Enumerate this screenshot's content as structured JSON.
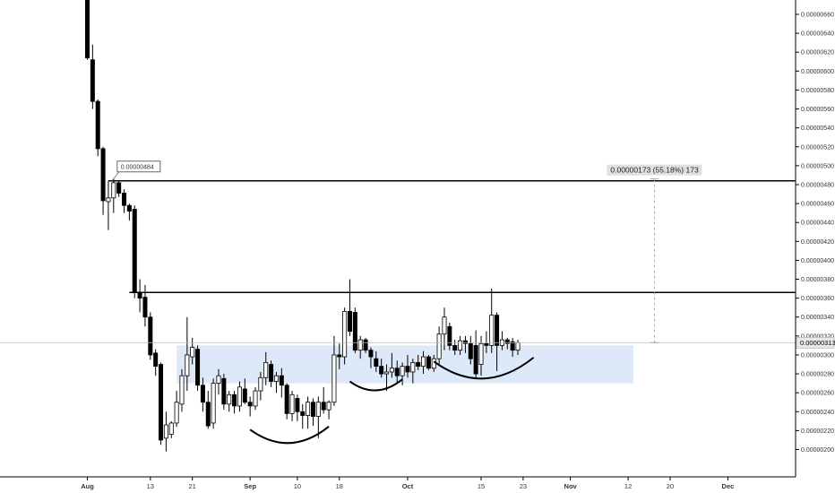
{
  "chart_data": {
    "type": "candlestick",
    "title": "",
    "xlabel": "",
    "ylabel": "",
    "ylim": [
      1.9e-06,
      6.7e-06
    ],
    "grid": false,
    "y_ticks": [
      "0.00000200",
      "0.00000220",
      "0.00000240",
      "0.00000260",
      "0.00000280",
      "0.00000300",
      "0.00000320",
      "0.00000340",
      "0.00000360",
      "0.00000380",
      "0.00000400",
      "0.00000420",
      "0.00000440",
      "0.00000460",
      "0.00000480",
      "0.00000500",
      "0.00000520",
      "0.00000540",
      "0.00000560",
      "0.00000580",
      "0.00000600",
      "0.00000620",
      "0.00000640",
      "0.00000660"
    ],
    "x_ticks": [
      {
        "label": "Aug",
        "date": "2018-08-01",
        "bold": true
      },
      {
        "label": "13",
        "date": "2018-08-13",
        "bold": false
      },
      {
        "label": "21",
        "date": "2018-08-21",
        "bold": false
      },
      {
        "label": "Sep",
        "date": "2018-09-01",
        "bold": true
      },
      {
        "label": "10",
        "date": "2018-09-10",
        "bold": false
      },
      {
        "label": "18",
        "date": "2018-09-18",
        "bold": false
      },
      {
        "label": "Oct",
        "date": "2018-10-01",
        "bold": true
      },
      {
        "label": "15",
        "date": "2018-10-15",
        "bold": false
      },
      {
        "label": "23",
        "date": "2018-10-23",
        "bold": false
      },
      {
        "label": "Nov",
        "date": "2018-11-01",
        "bold": true
      },
      {
        "label": "12",
        "date": "2018-11-12",
        "bold": false
      },
      {
        "label": "20",
        "date": "2018-11-20",
        "bold": false
      },
      {
        "label": "Dec",
        "date": "2018-12-01",
        "bold": true
      }
    ],
    "candles": [
      {
        "date": "2018-08-01",
        "o": 7.2e-06,
        "h": 7.2e-06,
        "l": 6.12e-06,
        "c": 6.14e-06
      },
      {
        "date": "2018-08-02",
        "o": 6.12e-06,
        "h": 6.28e-06,
        "l": 5.6e-06,
        "c": 5.68e-06
      },
      {
        "date": "2018-08-03",
        "o": 5.68e-06,
        "h": 5.7e-06,
        "l": 5.1e-06,
        "c": 5.18e-06
      },
      {
        "date": "2018-08-04",
        "o": 5.18e-06,
        "h": 5.2e-06,
        "l": 4.48e-06,
        "c": 4.63e-06
      },
      {
        "date": "2018-08-05",
        "o": 4.62e-06,
        "h": 4.84e-06,
        "l": 4.32e-06,
        "c": 4.66e-06
      },
      {
        "date": "2018-08-06",
        "o": 4.66e-06,
        "h": 4.86e-06,
        "l": 4.5e-06,
        "c": 4.82e-06
      },
      {
        "date": "2018-08-07",
        "o": 4.82e-06,
        "h": 4.84e-06,
        "l": 4.67e-06,
        "c": 4.71e-06
      },
      {
        "date": "2018-08-08",
        "o": 4.71e-06,
        "h": 4.75e-06,
        "l": 4.5e-06,
        "c": 4.58e-06
      },
      {
        "date": "2018-08-09",
        "o": 4.58e-06,
        "h": 4.6e-06,
        "l": 4.42e-06,
        "c": 4.52e-06
      },
      {
        "date": "2018-08-10",
        "o": 4.54e-06,
        "h": 4.58e-06,
        "l": 3.6e-06,
        "c": 3.66e-06
      },
      {
        "date": "2018-08-11",
        "o": 3.66e-06,
        "h": 3.8e-06,
        "l": 3.45e-06,
        "c": 3.6e-06
      },
      {
        "date": "2018-08-12",
        "o": 3.61e-06,
        "h": 3.74e-06,
        "l": 3.3e-06,
        "c": 3.4e-06
      },
      {
        "date": "2018-08-13",
        "o": 3.4e-06,
        "h": 3.45e-06,
        "l": 2.95e-06,
        "c": 3e-06
      },
      {
        "date": "2018-08-14",
        "o": 3.02e-06,
        "h": 3.06e-06,
        "l": 2.78e-06,
        "c": 2.88e-06
      },
      {
        "date": "2018-08-15",
        "o": 2.9e-06,
        "h": 2.92e-06,
        "l": 2.05e-06,
        "c": 2.1e-06
      },
      {
        "date": "2018-08-16",
        "o": 2.12e-06,
        "h": 2.4e-06,
        "l": 1.98e-06,
        "c": 2.26e-06
      },
      {
        "date": "2018-08-17",
        "o": 2.16e-06,
        "h": 2.3e-06,
        "l": 2.12e-06,
        "c": 2.28e-06
      },
      {
        "date": "2018-08-18",
        "o": 2.28e-06,
        "h": 2.62e-06,
        "l": 2.24e-06,
        "c": 2.5e-06
      },
      {
        "date": "2018-08-19",
        "o": 2.48e-06,
        "h": 2.85e-06,
        "l": 2.4e-06,
        "c": 2.78e-06
      },
      {
        "date": "2018-08-20",
        "o": 2.78e-06,
        "h": 3.4e-06,
        "l": 2.62e-06,
        "c": 3e-06
      },
      {
        "date": "2018-08-21",
        "o": 2.98e-06,
        "h": 3.18e-06,
        "l": 2.9e-06,
        "c": 3.08e-06
      },
      {
        "date": "2018-08-22",
        "o": 3.06e-06,
        "h": 3.1e-06,
        "l": 2.62e-06,
        "c": 2.68e-06
      },
      {
        "date": "2018-08-23",
        "o": 2.68e-06,
        "h": 2.76e-06,
        "l": 2.4e-06,
        "c": 2.5e-06
      },
      {
        "date": "2018-08-24",
        "o": 2.5e-06,
        "h": 2.62e-06,
        "l": 2.22e-06,
        "c": 2.25e-06
      },
      {
        "date": "2018-08-25",
        "o": 2.28e-06,
        "h": 2.75e-06,
        "l": 2.22e-06,
        "c": 2.7e-06
      },
      {
        "date": "2018-08-26",
        "o": 2.7e-06,
        "h": 2.85e-06,
        "l": 2.58e-06,
        "c": 2.78e-06
      },
      {
        "date": "2018-08-27",
        "o": 2.75e-06,
        "h": 2.8e-06,
        "l": 2.42e-06,
        "c": 2.48e-06
      },
      {
        "date": "2018-08-28",
        "o": 2.48e-06,
        "h": 2.62e-06,
        "l": 2.4e-06,
        "c": 2.58e-06
      },
      {
        "date": "2018-08-29",
        "o": 2.58e-06,
        "h": 2.62e-06,
        "l": 2.38e-06,
        "c": 2.46e-06
      },
      {
        "date": "2018-08-30",
        "o": 2.46e-06,
        "h": 2.72e-06,
        "l": 2.4e-06,
        "c": 2.66e-06
      },
      {
        "date": "2018-08-31",
        "o": 2.64e-06,
        "h": 2.75e-06,
        "l": 2.48e-06,
        "c": 2.5e-06
      },
      {
        "date": "2018-09-01",
        "o": 2.5e-06,
        "h": 2.56e-06,
        "l": 2.35e-06,
        "c": 2.46e-06
      },
      {
        "date": "2018-09-02",
        "o": 2.46e-06,
        "h": 2.66e-06,
        "l": 2.42e-06,
        "c": 2.62e-06
      },
      {
        "date": "2018-09-03",
        "o": 2.62e-06,
        "h": 2.82e-06,
        "l": 2.52e-06,
        "c": 2.76e-06
      },
      {
        "date": "2018-09-04",
        "o": 2.76e-06,
        "h": 3.03e-06,
        "l": 2.68e-06,
        "c": 2.92e-06
      },
      {
        "date": "2018-09-05",
        "o": 2.9e-06,
        "h": 2.94e-06,
        "l": 2.66e-06,
        "c": 2.72e-06
      },
      {
        "date": "2018-09-06",
        "o": 2.72e-06,
        "h": 2.82e-06,
        "l": 2.6e-06,
        "c": 2.78e-06
      },
      {
        "date": "2018-09-07",
        "o": 2.78e-06,
        "h": 2.86e-06,
        "l": 2.55e-06,
        "c": 2.68e-06
      },
      {
        "date": "2018-09-08",
        "o": 2.68e-06,
        "h": 2.7e-06,
        "l": 2.32e-06,
        "c": 2.38e-06
      },
      {
        "date": "2018-09-09",
        "o": 2.38e-06,
        "h": 2.62e-06,
        "l": 2.3e-06,
        "c": 2.58e-06
      },
      {
        "date": "2018-09-10",
        "o": 2.54e-06,
        "h": 2.58e-06,
        "l": 2.3e-06,
        "c": 2.4e-06
      },
      {
        "date": "2018-09-11",
        "o": 2.4e-06,
        "h": 2.48e-06,
        "l": 2.22e-06,
        "c": 2.36e-06
      },
      {
        "date": "2018-09-12",
        "o": 2.36e-06,
        "h": 2.56e-06,
        "l": 2.22e-06,
        "c": 2.5e-06
      },
      {
        "date": "2018-09-13",
        "o": 2.5e-06,
        "h": 2.54e-06,
        "l": 2.25e-06,
        "c": 2.35e-06
      },
      {
        "date": "2018-09-14",
        "o": 2.35e-06,
        "h": 2.56e-06,
        "l": 2.12e-06,
        "c": 2.5e-06
      },
      {
        "date": "2018-09-15",
        "o": 2.5e-06,
        "h": 2.66e-06,
        "l": 2.38e-06,
        "c": 2.42e-06
      },
      {
        "date": "2018-09-16",
        "o": 2.42e-06,
        "h": 2.52e-06,
        "l": 2.32e-06,
        "c": 2.5e-06
      },
      {
        "date": "2018-09-17",
        "o": 2.5e-06,
        "h": 3.2e-06,
        "l": 2.46e-06,
        "c": 3e-06
      },
      {
        "date": "2018-09-18",
        "o": 3e-06,
        "h": 3.12e-06,
        "l": 2.85e-06,
        "c": 2.98e-06
      },
      {
        "date": "2018-09-19",
        "o": 2.98e-06,
        "h": 3.5e-06,
        "l": 2.9e-06,
        "c": 3.46e-06
      },
      {
        "date": "2018-09-20",
        "o": 3.46e-06,
        "h": 3.8e-06,
        "l": 3.2e-06,
        "c": 3.25e-06
      },
      {
        "date": "2018-09-21",
        "o": 3.45e-06,
        "h": 3.5e-06,
        "l": 3.02e-06,
        "c": 3.05e-06
      },
      {
        "date": "2018-09-22",
        "o": 3.05e-06,
        "h": 3.2e-06,
        "l": 2.96e-06,
        "c": 3.16e-06
      },
      {
        "date": "2018-09-23",
        "o": 3.16e-06,
        "h": 3.18e-06,
        "l": 3.02e-06,
        "c": 3.05e-06
      },
      {
        "date": "2018-09-24",
        "o": 3.05e-06,
        "h": 3.08e-06,
        "l": 2.86e-06,
        "c": 2.98e-06
      },
      {
        "date": "2018-09-25",
        "o": 2.96e-06,
        "h": 3.04e-06,
        "l": 2.82e-06,
        "c": 2.88e-06
      },
      {
        "date": "2018-09-26",
        "o": 2.88e-06,
        "h": 2.96e-06,
        "l": 2.76e-06,
        "c": 2.8e-06
      },
      {
        "date": "2018-09-27",
        "o": 2.8e-06,
        "h": 2.9e-06,
        "l": 2.62e-06,
        "c": 2.82e-06
      },
      {
        "date": "2018-09-28",
        "o": 2.82e-06,
        "h": 3.02e-06,
        "l": 2.76e-06,
        "c": 2.86e-06
      },
      {
        "date": "2018-09-29",
        "o": 2.86e-06,
        "h": 2.94e-06,
        "l": 2.7e-06,
        "c": 2.78e-06
      },
      {
        "date": "2018-09-30",
        "o": 2.78e-06,
        "h": 2.92e-06,
        "l": 2.68e-06,
        "c": 2.88e-06
      },
      {
        "date": "2018-10-01",
        "o": 2.88e-06,
        "h": 3e-06,
        "l": 2.76e-06,
        "c": 2.82e-06
      },
      {
        "date": "2018-10-02",
        "o": 2.82e-06,
        "h": 2.96e-06,
        "l": 2.7e-06,
        "c": 2.92e-06
      },
      {
        "date": "2018-10-03",
        "o": 2.92e-06,
        "h": 3e-06,
        "l": 2.84e-06,
        "c": 2.88e-06
      },
      {
        "date": "2018-10-04",
        "o": 2.88e-06,
        "h": 3.04e-06,
        "l": 2.8e-06,
        "c": 2.98e-06
      },
      {
        "date": "2018-10-05",
        "o": 2.98e-06,
        "h": 3e-06,
        "l": 2.84e-06,
        "c": 2.86e-06
      },
      {
        "date": "2018-10-06",
        "o": 2.86e-06,
        "h": 3e-06,
        "l": 2.82e-06,
        "c": 2.96e-06
      },
      {
        "date": "2018-10-07",
        "o": 2.96e-06,
        "h": 3.3e-06,
        "l": 2.9e-06,
        "c": 3.22e-06
      },
      {
        "date": "2018-10-08",
        "o": 3.22e-06,
        "h": 3.5e-06,
        "l": 3.05e-06,
        "c": 3.4e-06
      },
      {
        "date": "2018-10-09",
        "o": 3.3e-06,
        "h": 3.34e-06,
        "l": 3.05e-06,
        "c": 3.1e-06
      },
      {
        "date": "2018-10-10",
        "o": 3.1e-06,
        "h": 3.16e-06,
        "l": 3e-06,
        "c": 3.05e-06
      },
      {
        "date": "2018-10-11",
        "o": 3.05e-06,
        "h": 3.2e-06,
        "l": 3e-06,
        "c": 3.15e-06
      },
      {
        "date": "2018-10-12",
        "o": 3.15e-06,
        "h": 3.2e-06,
        "l": 3.02e-06,
        "c": 3.12e-06
      },
      {
        "date": "2018-10-13",
        "o": 3.12e-06,
        "h": 3.2e-06,
        "l": 2.9e-06,
        "c": 2.96e-06
      },
      {
        "date": "2018-10-14",
        "o": 3.1e-06,
        "h": 3.26e-06,
        "l": 2.75e-06,
        "c": 2.8e-06
      },
      {
        "date": "2018-10-15",
        "o": 2.9e-06,
        "h": 3.2e-06,
        "l": 2.78e-06,
        "c": 3.12e-06
      },
      {
        "date": "2018-10-16",
        "o": 3.12e-06,
        "h": 3.25e-06,
        "l": 3.02e-06,
        "c": 3.1e-06
      },
      {
        "date": "2018-10-17",
        "o": 3.1e-06,
        "h": 3.7e-06,
        "l": 3.02e-06,
        "c": 3.42e-06
      },
      {
        "date": "2018-10-18",
        "o": 3.42e-06,
        "h": 3.45e-06,
        "l": 2.83e-06,
        "c": 3.1e-06
      },
      {
        "date": "2018-10-19",
        "o": 3.1e-06,
        "h": 3.25e-06,
        "l": 3.05e-06,
        "c": 3.16e-06
      },
      {
        "date": "2018-10-20",
        "o": 3.16e-06,
        "h": 3.18e-06,
        "l": 3.06e-06,
        "c": 3.12e-06
      },
      {
        "date": "2018-10-21",
        "o": 3.14e-06,
        "h": 3.18e-06,
        "l": 2.98e-06,
        "c": 3.05e-06
      },
      {
        "date": "2018-10-22",
        "o": 3.05e-06,
        "h": 3.16e-06,
        "l": 3e-06,
        "c": 3.13e-06
      }
    ],
    "annotations": {
      "resistance_line_1": 4.84e-06,
      "resistance_line_2": 3.66e-06,
      "price_marker_label": "0.00000484",
      "measure_label": "0.00000173 (55.18%) 173",
      "current_price_label": "0.00000313",
      "current_price": 3.13e-06,
      "support_zone": {
        "from_date": "2018-08-18",
        "to_date": "2018-11-13",
        "low": 2.7e-06,
        "high": 3.1e-06
      },
      "curves": [
        {
          "from_date": "2018-09-01",
          "to_date": "2018-09-16",
          "bottom": 2.06e-06
        },
        {
          "from_date": "2018-09-20",
          "to_date": "2018-09-30",
          "bottom": 2.62e-06
        },
        {
          "from_date": "2018-10-06",
          "to_date": "2018-10-25",
          "bottom": 2.74e-06
        }
      ]
    },
    "colors": {
      "bull_fill": "#ffffff",
      "bear_fill": "#000000",
      "candle_stroke": "#000000",
      "zone_fill": "#dde8f8",
      "line": "#000000",
      "axis_text": "#333333",
      "label_bg": "#e0e0e0",
      "current_price_bg": "#e8e8e8"
    }
  }
}
